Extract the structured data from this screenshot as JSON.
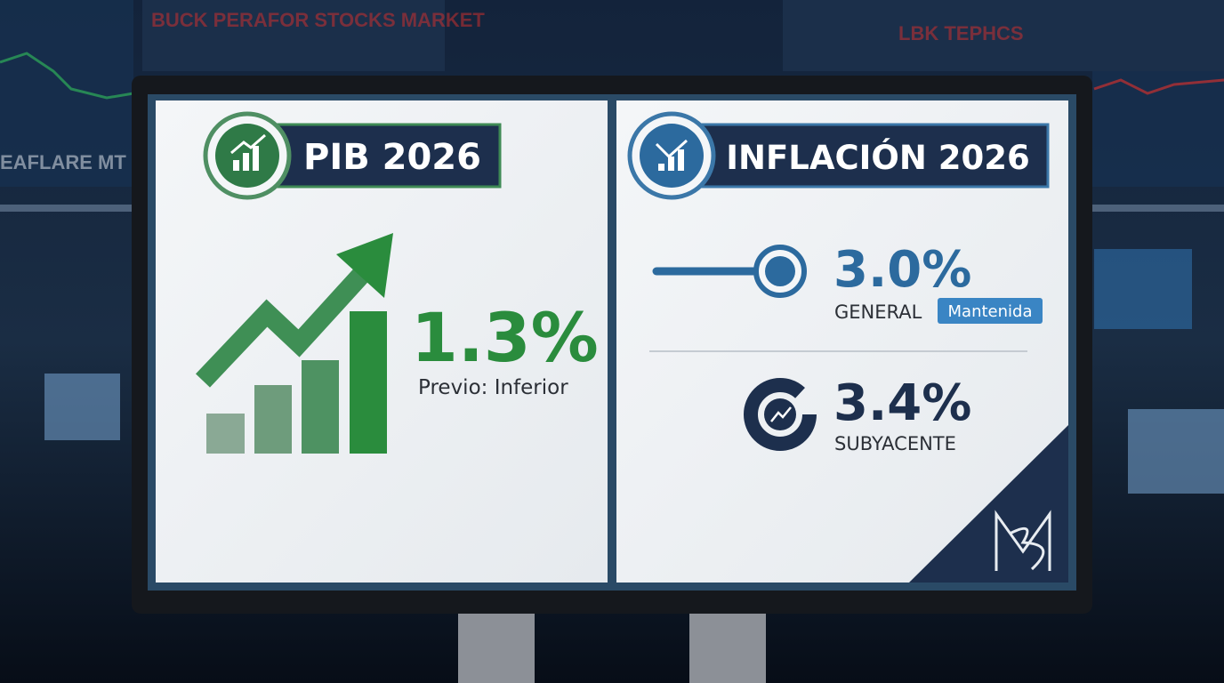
{
  "background": {
    "tickers": [
      "BUCK PERAFOR STOCKS MARKET",
      "EAFLARE MT",
      "LBK TEPHCS"
    ]
  },
  "panels": [
    {
      "title": "PIB 2026",
      "value": "1.3%",
      "note": "Previo: Inferior"
    },
    {
      "title": "INFLACIÓN 2026",
      "items": [
        {
          "value": "3.0%",
          "label": "GENERAL",
          "badge": "Mantenida"
        },
        {
          "value": "3.4%",
          "label": "SUBYACENTE"
        }
      ]
    }
  ]
}
